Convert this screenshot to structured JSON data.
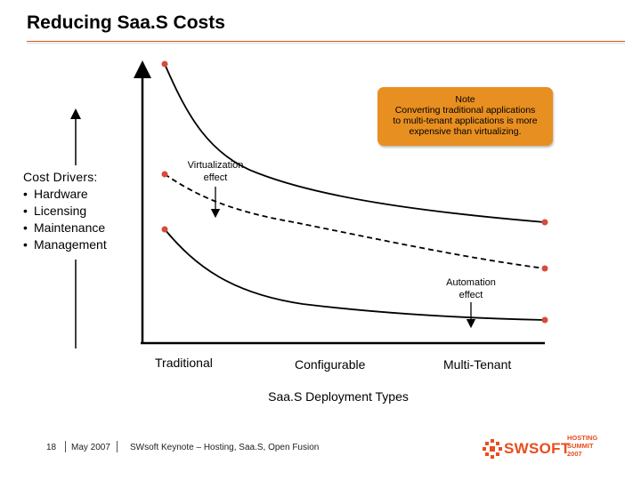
{
  "slide": {
    "title": "Reducing Saa.S Costs",
    "accent_color": "#e04a1c",
    "note_color": "#e88f21"
  },
  "note": {
    "heading": "Note",
    "lines": [
      "Converting traditional applications",
      "to multi-tenant applications is more",
      "expensive than virtualizing."
    ]
  },
  "cost_drivers": {
    "heading": "Cost Drivers:",
    "bullet": "•",
    "items": [
      "Hardware",
      "Licensing",
      "Maintenance",
      "Management"
    ]
  },
  "annotations": {
    "virtualization_line1": "Virtualization",
    "virtualization_line2": "effect",
    "automation_line1": "Automation",
    "automation_line2": "effect"
  },
  "x_axis": {
    "categories": [
      "Traditional",
      "Configurable",
      "Multi-Tenant"
    ],
    "title": "Saa.S Deployment Types"
  },
  "footer": {
    "page_number": "18",
    "date": "May 2007",
    "presentation": "SWsoft Keynote – Hosting, Saa.S, Open Fusion",
    "logo_text": "SWSOFT",
    "event_line1": "HOSTING",
    "event_line2": "SUMMIT",
    "event_line3": "2007"
  }
}
